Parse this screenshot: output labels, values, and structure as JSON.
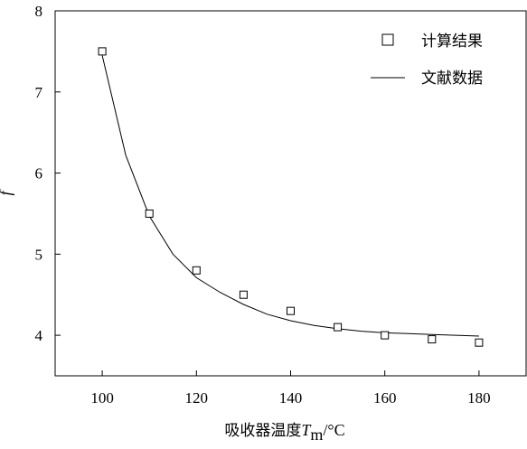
{
  "chart_data": {
    "type": "scatter",
    "title": "",
    "xlabel": {
      "prefix": "吸收器温度",
      "symbol": "T",
      "subscript": "m",
      "unit": "/°C"
    },
    "ylabel": "f",
    "xlim": [
      90,
      190
    ],
    "ylim": [
      3.5,
      8
    ],
    "x_ticks": [
      100,
      120,
      140,
      160,
      180
    ],
    "y_ticks": [
      4,
      5,
      6,
      7,
      8
    ],
    "grid": false,
    "legend_position": "top-right",
    "series": [
      {
        "name": "计算结果",
        "kind": "scatter",
        "marker": "open-square",
        "x": [
          100,
          110,
          120,
          130,
          140,
          150,
          160,
          170,
          180
        ],
        "y": [
          7.5,
          5.5,
          4.8,
          4.5,
          4.3,
          4.1,
          4.0,
          3.95,
          3.91
        ]
      },
      {
        "name": "文献数据",
        "kind": "line",
        "x": [
          100,
          105,
          110,
          115,
          120,
          125,
          130,
          135,
          140,
          145,
          150,
          155,
          160,
          165,
          170,
          175,
          180
        ],
        "y": [
          7.45,
          6.22,
          5.47,
          5.0,
          4.71,
          4.53,
          4.38,
          4.26,
          4.18,
          4.12,
          4.08,
          4.05,
          4.03,
          4.02,
          4.01,
          4.0,
          3.99
        ]
      }
    ]
  },
  "colors": {
    "ink": "#000000",
    "background": "#ffffff"
  }
}
